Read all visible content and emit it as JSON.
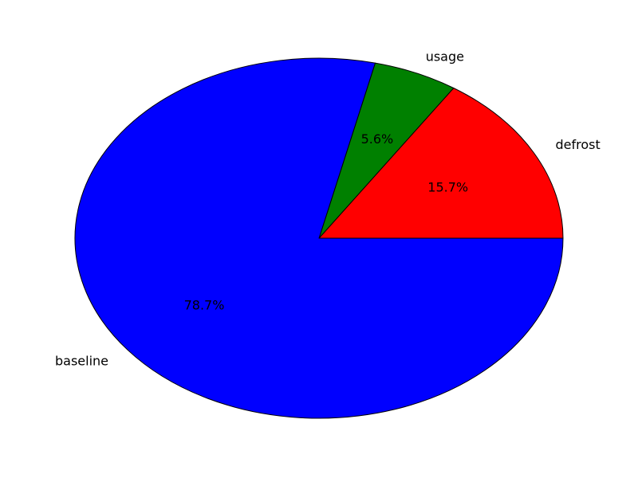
{
  "chart_data": {
    "type": "pie",
    "title": "",
    "start_angle_deg": 0,
    "direction": "counterclockwise",
    "slices": [
      {
        "label": "defrost",
        "value": 15.7,
        "percent_label": "15.7%",
        "color": "#ff0000"
      },
      {
        "label": "usage",
        "value": 5.6,
        "percent_label": "5.6%",
        "color": "#008000"
      },
      {
        "label": "baseline",
        "value": 78.7,
        "percent_label": "78.7%",
        "color": "#0000ff"
      }
    ],
    "edge_color": "#000000",
    "legend": "none"
  }
}
